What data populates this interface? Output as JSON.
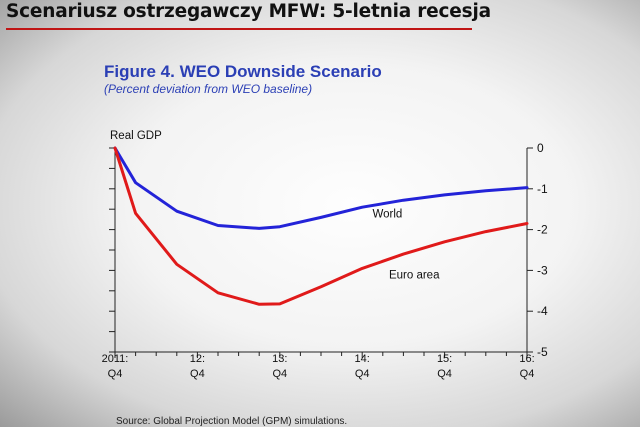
{
  "slide": {
    "title": "Scenariusz ostrzegawczy MFW: 5-letnia recesja",
    "underline_color": "#c01515"
  },
  "chart_data": {
    "type": "line",
    "title": "Figure 4.  WEO Downside Scenario",
    "subtitle": "(Percent deviation from WEO baseline)",
    "ylabel": "Real GDP",
    "source": "Source: Global Projection Model (GPM) simulations.",
    "x_ticks": [
      {
        "top": "2011:",
        "bottom": "Q4"
      },
      {
        "top": "12:",
        "bottom": "Q4"
      },
      {
        "top": "13:",
        "bottom": "Q4"
      },
      {
        "top": "14:",
        "bottom": "Q4"
      },
      {
        "top": "15:",
        "bottom": "Q4"
      },
      {
        "top": "16:",
        "bottom": "Q4"
      }
    ],
    "xlim": [
      0,
      20
    ],
    "ylim": [
      -5,
      0
    ],
    "y_ticks": [
      0,
      -1,
      -2,
      -3,
      -4,
      -5
    ],
    "series": [
      {
        "name": "World",
        "color": "#2323d8",
        "x": [
          0,
          1,
          3,
          5,
          7,
          8,
          10,
          12,
          14,
          16,
          18,
          20
        ],
        "y": [
          0,
          -0.85,
          -1.55,
          -1.9,
          -1.97,
          -1.93,
          -1.7,
          -1.45,
          -1.28,
          -1.15,
          -1.05,
          -0.97
        ]
      },
      {
        "name": "Euro area",
        "color": "#e01a1a",
        "x": [
          0,
          1,
          3,
          5,
          7,
          8,
          10,
          12,
          14,
          16,
          18,
          20
        ],
        "y": [
          0,
          -1.6,
          -2.85,
          -3.55,
          -3.83,
          -3.82,
          -3.4,
          -2.95,
          -2.6,
          -2.3,
          -2.05,
          -1.85
        ]
      }
    ]
  }
}
